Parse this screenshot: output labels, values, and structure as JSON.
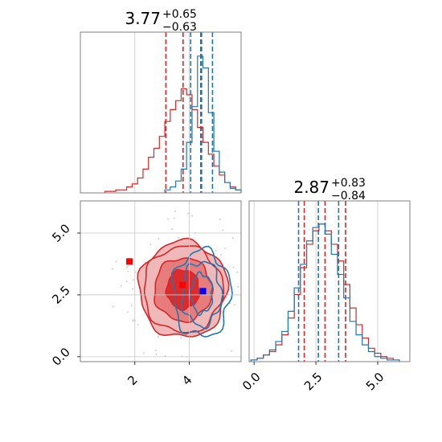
{
  "colors": {
    "red": "#d62728",
    "blue": "#1f77b4",
    "grid": "#c8c8c8",
    "frame": "#808080",
    "fill_light": "#f0b9b9",
    "fill_mid": "#e77c7c",
    "fill_dark": "#dd2b2b",
    "scatter": "#c4c4c4",
    "marker_red": "#ff0000",
    "marker_blue": "#0000ff"
  },
  "chart_data": [
    {
      "panel": "top-left",
      "type": "histogram",
      "title": {
        "median": "3.77",
        "plus": "+0.65",
        "minus": "−0.63"
      },
      "xlim": [
        0.0,
        5.9
      ],
      "grid": true,
      "series": [
        {
          "color": "red",
          "x": [
            1.0,
            1.2,
            1.4,
            1.6,
            1.8,
            2.0,
            2.2,
            2.4,
            2.6,
            2.8,
            3.0,
            3.2,
            3.4,
            3.6,
            3.8,
            4.0,
            4.2,
            4.4,
            4.6,
            4.8,
            5.0,
            5.2,
            5.4,
            5.6,
            5.8
          ],
          "values": [
            0.01,
            0.01,
            0.02,
            0.02,
            0.04,
            0.06,
            0.1,
            0.16,
            0.24,
            0.3,
            0.38,
            0.48,
            0.56,
            0.62,
            0.7,
            0.66,
            0.56,
            0.44,
            0.34,
            0.26,
            0.18,
            0.12,
            0.07,
            0.04,
            0.02
          ],
          "quantile_lines": [
            3.14,
            3.77,
            4.42
          ]
        },
        {
          "color": "blue",
          "x": [
            3.2,
            3.4,
            3.6,
            3.8,
            4.0,
            4.2,
            4.4,
            4.6,
            4.8,
            5.0,
            5.2,
            5.4,
            5.6,
            5.8
          ],
          "values": [
            0.02,
            0.04,
            0.08,
            0.16,
            0.34,
            0.58,
            0.92,
            0.84,
            0.54,
            0.28,
            0.14,
            0.07,
            0.03,
            0.02
          ],
          "quantile_lines": [
            4.05,
            4.45,
            4.85
          ]
        }
      ]
    },
    {
      "panel": "bottom-left",
      "type": "contour",
      "xlim": [
        0.0,
        5.9
      ],
      "ylim": [
        -0.2,
        6.3
      ],
      "xticks": [
        "2",
        "4"
      ],
      "xtick_values": [
        2,
        4
      ],
      "yticks": [
        "0.0",
        "2.5",
        "5.0"
      ],
      "ytick_values": [
        0.0,
        2.5,
        5.0
      ],
      "grid": true,
      "red_contours": {
        "center": [
          3.77,
          2.72
        ],
        "radii": [
          [
            1.62,
            1.95
          ],
          [
            1.45,
            1.75
          ],
          [
            1.06,
            1.28
          ],
          [
            0.6,
            0.8
          ]
        ]
      },
      "blue_contours": {
        "center": [
          4.45,
          2.55
        ],
        "radii": [
          [
            1.05,
            1.75
          ],
          [
            0.72,
            1.3
          ],
          [
            0.4,
            0.8
          ]
        ]
      },
      "markers": [
        {
          "color": "marker_red",
          "x": 1.8,
          "y": 3.85
        },
        {
          "color": "marker_red",
          "x": 3.75,
          "y": 2.9
        },
        {
          "color": "marker_blue",
          "x": 4.5,
          "y": 2.65
        }
      ]
    },
    {
      "panel": "bottom-right",
      "type": "histogram",
      "title": {
        "median": "2.87",
        "plus": "+0.83",
        "minus": "−0.84"
      },
      "xlim": [
        -0.2,
        6.3
      ],
      "xticks": [
        "0.0",
        "2.5",
        "5.0"
      ],
      "xtick_values": [
        0.0,
        2.5,
        5.0
      ],
      "grid": true,
      "series": [
        {
          "color": "red",
          "x": [
            0.0,
            0.25,
            0.5,
            0.75,
            1.0,
            1.25,
            1.5,
            1.75,
            2.0,
            2.25,
            2.5,
            2.75,
            3.0,
            3.25,
            3.5,
            3.75,
            4.0,
            4.25,
            4.5,
            4.75,
            5.0,
            5.25,
            5.5,
            5.75
          ],
          "values": [
            0.01,
            0.02,
            0.04,
            0.06,
            0.1,
            0.16,
            0.26,
            0.4,
            0.56,
            0.7,
            0.78,
            0.82,
            0.78,
            0.7,
            0.6,
            0.46,
            0.32,
            0.22,
            0.14,
            0.08,
            0.05,
            0.03,
            0.02,
            0.01
          ],
          "quantile_lines": [
            2.03,
            2.87,
            3.7
          ]
        },
        {
          "color": "blue",
          "x": [
            0.0,
            0.25,
            0.5,
            0.75,
            1.0,
            1.25,
            1.5,
            1.75,
            2.0,
            2.25,
            2.5,
            2.75,
            3.0,
            3.25,
            3.5,
            3.75,
            4.0,
            4.25,
            4.5,
            4.75,
            5.0,
            5.25,
            5.5,
            5.75
          ],
          "values": [
            0.01,
            0.02,
            0.04,
            0.07,
            0.12,
            0.18,
            0.3,
            0.44,
            0.58,
            0.72,
            0.8,
            0.82,
            0.76,
            0.64,
            0.52,
            0.38,
            0.24,
            0.16,
            0.1,
            0.06,
            0.03,
            0.02,
            0.01,
            0.01
          ],
          "quantile_lines": [
            1.8,
            2.6,
            3.42
          ]
        }
      ]
    }
  ]
}
